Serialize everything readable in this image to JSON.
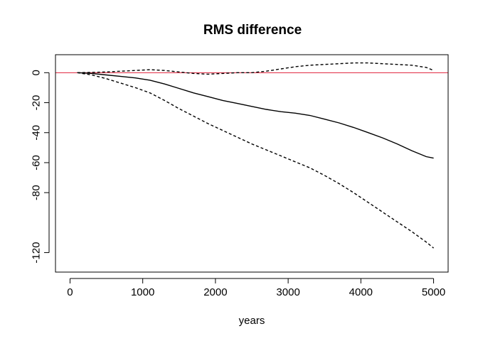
{
  "chart_data": {
    "type": "line",
    "title": "RMS difference",
    "xlabel": "years",
    "ylabel": "",
    "xlim": [
      -200,
      5200
    ],
    "ylim": [
      -133,
      12
    ],
    "x_ticks": [
      0,
      1000,
      2000,
      3000,
      4000,
      5000
    ],
    "x_tick_labels": [
      "0",
      "1000",
      "2000",
      "3000",
      "4000",
      "5000"
    ],
    "y_ticks": [
      0,
      -20,
      -40,
      -60,
      -80,
      -120
    ],
    "y_tick_labels": [
      "0",
      "-20",
      "-40",
      "-60",
      "-80",
      "-120"
    ],
    "reference_line": {
      "y": 0,
      "color": "#e0203a"
    },
    "grid": false,
    "series": [
      {
        "line_style": "solid",
        "color": "#000000",
        "x": [
          100,
          300,
          500,
          700,
          900,
          1100,
          1300,
          1500,
          1700,
          1900,
          2100,
          2300,
          2500,
          2700,
          2900,
          3100,
          3300,
          3500,
          3700,
          3900,
          4100,
          4300,
          4500,
          4700,
          4900,
          5000
        ],
        "values": [
          0,
          -0.5,
          -1.5,
          -2.5,
          -3.5,
          -5,
          -7.5,
          -10.5,
          -13.5,
          -16,
          -18.5,
          -20.5,
          -22.5,
          -24.5,
          -26,
          -27,
          -28.5,
          -31,
          -33.5,
          -36.5,
          -40,
          -43.5,
          -47.5,
          -52,
          -56,
          -57
        ]
      },
      {
        "line_style": "dashed",
        "color": "#000000",
        "x": [
          100,
          300,
          500,
          700,
          900,
          1100,
          1300,
          1500,
          1700,
          1900,
          2100,
          2300,
          2500,
          2700,
          2900,
          3100,
          3300,
          3500,
          3700,
          3900,
          4100,
          4300,
          4500,
          4700,
          4900,
          5000
        ],
        "values": [
          0,
          0.2,
          0.5,
          1,
          1.5,
          2,
          1.5,
          0.5,
          -0.5,
          -1,
          -0.5,
          0,
          0,
          1,
          2.5,
          4,
          5,
          5.5,
          6,
          6.5,
          6.5,
          6,
          5.5,
          5,
          3.5,
          1.5
        ]
      },
      {
        "line_style": "dashed",
        "color": "#000000",
        "x": [
          100,
          300,
          500,
          700,
          900,
          1100,
          1300,
          1500,
          1700,
          1900,
          2100,
          2300,
          2500,
          2700,
          2900,
          3100,
          3300,
          3500,
          3700,
          3900,
          4100,
          4300,
          4500,
          4700,
          4900,
          5000
        ],
        "values": [
          0,
          -1.5,
          -4,
          -7,
          -10,
          -13.5,
          -18.5,
          -24,
          -29,
          -34,
          -38.5,
          -43,
          -47.5,
          -51.5,
          -55.5,
          -59.5,
          -63.5,
          -68.5,
          -74,
          -80,
          -86.5,
          -93,
          -99.5,
          -106,
          -113,
          -117
        ]
      }
    ]
  }
}
